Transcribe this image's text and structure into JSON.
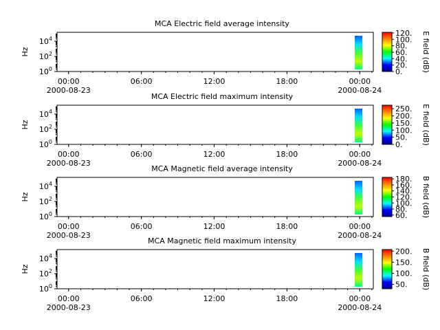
{
  "chart_data": [
    {
      "type": "spectrogram",
      "title": "MCA  Electric field average intensity",
      "ylabel": "Hz",
      "log_y": true,
      "ylim": [
        1,
        150000
      ],
      "yticks": [
        {
          "value": 1,
          "label": "10^0"
        },
        {
          "value": 100,
          "label": "10^2"
        },
        {
          "value": 10000,
          "label": "10^4"
        }
      ],
      "xlim": [
        "2000-08-22T23:03",
        "2000-08-24T01:07"
      ],
      "xticks": [
        {
          "value": "2000-08-23T00:00",
          "label": "00:00\n2000-08-23"
        },
        {
          "value": "2000-08-23T06:00",
          "label": "06:00"
        },
        {
          "value": "2000-08-23T12:00",
          "label": "12:00"
        },
        {
          "value": "2000-08-23T18:00",
          "label": "18:00"
        },
        {
          "value": "2000-08-24T00:00",
          "label": "00:00\n2000-08-24"
        }
      ],
      "colorbar": {
        "label": "E field (dB)",
        "lim": [
          0,
          122
        ],
        "ticks": [
          {
            "value": 0,
            "label": "0."
          },
          {
            "value": 20,
            "label": "20."
          },
          {
            "value": 40,
            "label": "40."
          },
          {
            "value": 60,
            "label": "60."
          },
          {
            "value": 80,
            "label": "80."
          },
          {
            "value": 100,
            "label": "100."
          },
          {
            "value": 120,
            "label": "120."
          }
        ]
      },
      "colormap": [
        "#00008f",
        "#0000ff",
        "#00ffff",
        "#00ff00",
        "#ffff00",
        "#ff8000",
        "#ff0000"
      ]
    },
    {
      "type": "spectrogram",
      "title": "MCA  Electric field maximum intensity",
      "ylabel": "Hz",
      "log_y": true,
      "ylim": [
        1,
        150000
      ],
      "yticks": [
        {
          "value": 1,
          "label": "10^0"
        },
        {
          "value": 100,
          "label": "10^2"
        },
        {
          "value": 10000,
          "label": "10^4"
        }
      ],
      "xlim": [
        "2000-08-22T23:03",
        "2000-08-24T01:07"
      ],
      "xticks": [
        {
          "value": "2000-08-23T00:00",
          "label": "00:00\n2000-08-23"
        },
        {
          "value": "2000-08-23T06:00",
          "label": "06:00"
        },
        {
          "value": "2000-08-23T12:00",
          "label": "12:00"
        },
        {
          "value": "2000-08-23T18:00",
          "label": "18:00"
        },
        {
          "value": "2000-08-24T00:00",
          "label": "00:00\n2000-08-24"
        }
      ],
      "colorbar": {
        "label": "E field (dB)",
        "lim": [
          0,
          275
        ],
        "ticks": [
          {
            "value": 0,
            "label": "0."
          },
          {
            "value": 50,
            "label": "50."
          },
          {
            "value": 100,
            "label": "100."
          },
          {
            "value": 150,
            "label": "150."
          },
          {
            "value": 200,
            "label": "200."
          },
          {
            "value": 250,
            "label": "250."
          }
        ]
      },
      "colormap": [
        "#00008f",
        "#0000ff",
        "#00ffff",
        "#00ff00",
        "#ffff00",
        "#ff8000",
        "#ff0000"
      ]
    },
    {
      "type": "spectrogram",
      "title": "MCA  Magnetic field average intensity",
      "ylabel": "Hz",
      "log_y": true,
      "ylim": [
        1,
        150000
      ],
      "yticks": [
        {
          "value": 1,
          "label": "10^0"
        },
        {
          "value": 100,
          "label": "10^2"
        },
        {
          "value": 10000,
          "label": "10^4"
        }
      ],
      "xlim": [
        "2000-08-22T23:03",
        "2000-08-24T01:07"
      ],
      "xticks": [
        {
          "value": "2000-08-23T00:00",
          "label": "00:00\n2000-08-23"
        },
        {
          "value": "2000-08-23T06:00",
          "label": "06:00"
        },
        {
          "value": "2000-08-23T12:00",
          "label": "12:00"
        },
        {
          "value": "2000-08-23T18:00",
          "label": "18:00"
        },
        {
          "value": "2000-08-24T00:00",
          "label": "00:00\n2000-08-24"
        }
      ],
      "colorbar": {
        "label": "B field (dB)",
        "lim": [
          55,
          185
        ],
        "ticks": [
          {
            "value": 60,
            "label": "60."
          },
          {
            "value": 80,
            "label": "80."
          },
          {
            "value": 100,
            "label": "100."
          },
          {
            "value": 120,
            "label": "120."
          },
          {
            "value": 140,
            "label": "140."
          },
          {
            "value": 160,
            "label": "160."
          },
          {
            "value": 180,
            "label": "180."
          }
        ]
      },
      "colormap": [
        "#00008f",
        "#0000ff",
        "#00ffff",
        "#00ff00",
        "#ffff00",
        "#ff8000",
        "#ff0000"
      ]
    },
    {
      "type": "spectrogram",
      "title": "MCA  Magnetic field maximum intensity",
      "ylabel": "Hz",
      "log_y": true,
      "ylim": [
        1,
        150000
      ],
      "yticks": [
        {
          "value": 1,
          "label": "10^0"
        },
        {
          "value": 100,
          "label": "10^2"
        },
        {
          "value": 10000,
          "label": "10^4"
        }
      ],
      "xlim": [
        "2000-08-22T23:03",
        "2000-08-24T01:07"
      ],
      "xticks": [
        {
          "value": "2000-08-23T00:00",
          "label": "00:00\n2000-08-23"
        },
        {
          "value": "2000-08-23T06:00",
          "label": "06:00"
        },
        {
          "value": "2000-08-23T12:00",
          "label": "12:00"
        },
        {
          "value": "2000-08-23T18:00",
          "label": "18:00"
        },
        {
          "value": "2000-08-24T00:00",
          "label": "00:00\n2000-08-24"
        }
      ],
      "colorbar": {
        "label": "B field (dB)",
        "lim": [
          30,
          207
        ],
        "ticks": [
          {
            "value": 50,
            "label": "50."
          },
          {
            "value": 100,
            "label": "100."
          },
          {
            "value": 150,
            "label": "150."
          },
          {
            "value": 200,
            "label": "200."
          }
        ]
      },
      "colormap": [
        "#00008f",
        "#0000ff",
        "#00ffff",
        "#00ff00",
        "#ffff00",
        "#ff8000",
        "#ff0000"
      ]
    }
  ]
}
